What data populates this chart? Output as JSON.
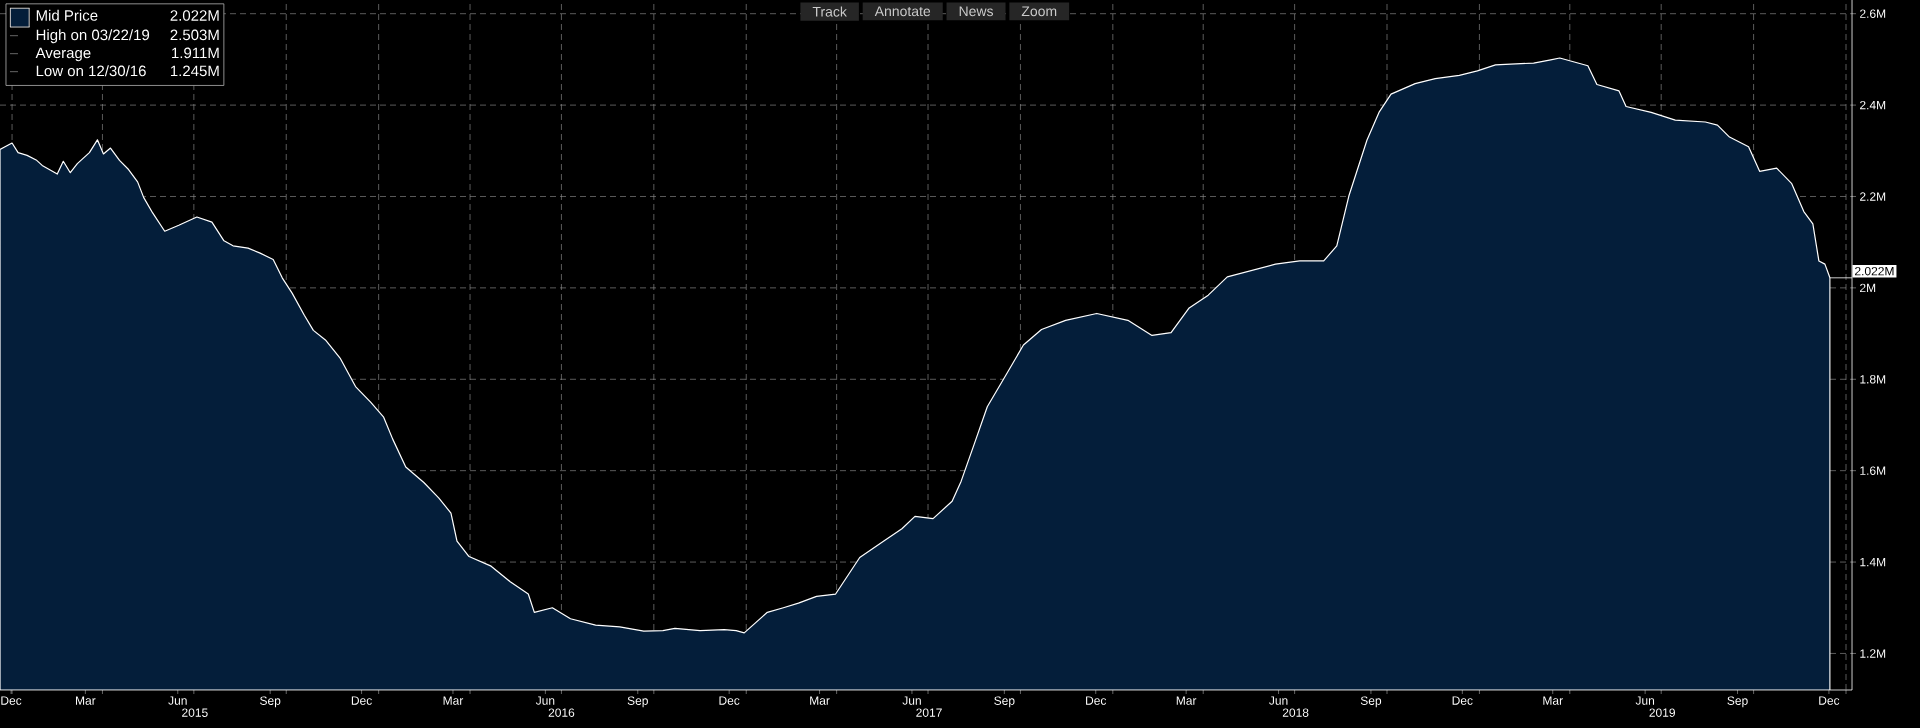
{
  "chart_data": {
    "type": "area",
    "x": [
      "2014-12-20",
      "2015-01-01",
      "2015-01-07",
      "2015-01-16",
      "2015-01-25",
      "2015-01-31",
      "2015-02-15",
      "2015-02-21",
      "2015-02-28",
      "2015-03-07",
      "2015-03-19",
      "2015-03-27",
      "2015-04-02",
      "2015-04-09",
      "2015-04-18",
      "2015-04-27",
      "2015-05-06",
      "2015-05-12",
      "2015-05-21",
      "2015-06-02",
      "2015-06-16",
      "2015-07-04",
      "2015-07-19",
      "2015-07-31",
      "2015-08-09",
      "2015-08-24",
      "2015-09-05",
      "2015-09-18",
      "2015-09-27",
      "2015-10-07",
      "2015-10-19",
      "2015-10-28",
      "2015-11-09",
      "2015-11-24",
      "2015-12-09",
      "2015-12-24",
      "2016-01-06",
      "2016-01-15",
      "2016-01-28",
      "2016-02-15",
      "2016-03-01",
      "2016-03-13",
      "2016-03-19",
      "2016-03-31",
      "2016-04-22",
      "2016-05-11",
      "2016-05-29",
      "2016-06-04",
      "2016-06-22",
      "2016-07-10",
      "2016-08-04",
      "2016-08-28",
      "2016-09-21",
      "2016-10-10",
      "2016-10-22",
      "2016-11-16",
      "2016-12-10",
      "2016-12-22",
      "2016-12-30",
      "2017-01-22",
      "2017-02-07",
      "2017-02-22",
      "2017-03-12",
      "2017-03-31",
      "2017-04-12",
      "2017-04-24",
      "2017-05-18",
      "2017-06-05",
      "2017-06-18",
      "2017-07-06",
      "2017-07-25",
      "2017-08-03",
      "2017-08-16",
      "2017-08-29",
      "2017-09-16",
      "2017-10-04",
      "2017-10-22",
      "2017-11-15",
      "2017-12-16",
      "2018-01-16",
      "2018-02-09",
      "2018-02-28",
      "2018-03-18",
      "2018-04-06",
      "2018-04-25",
      "2018-05-19",
      "2018-06-12",
      "2018-07-06",
      "2018-07-30",
      "2018-08-12",
      "2018-08-24",
      "2018-09-11",
      "2018-09-23",
      "2018-10-05",
      "2018-10-29",
      "2018-11-18",
      "2018-12-12",
      "2018-12-30",
      "2019-01-17",
      "2019-02-24",
      "2019-03-13",
      "2019-03-22",
      "2019-04-19",
      "2019-04-28",
      "2019-05-20",
      "2019-05-27",
      "2019-06-21",
      "2019-07-15",
      "2019-08-14",
      "2019-08-26",
      "2019-09-07",
      "2019-09-26",
      "2019-10-07",
      "2019-10-24",
      "2019-11-08",
      "2019-11-20",
      "2019-11-29",
      "2019-12-05",
      "2019-12-11",
      "2019-12-16"
    ],
    "series": [
      {
        "name": "Mid Price",
        "color": "#041e3a",
        "values": [
          2.303,
          2.317,
          2.296,
          2.29,
          2.28,
          2.268,
          2.249,
          2.277,
          2.252,
          2.272,
          2.296,
          2.324,
          2.293,
          2.306,
          2.279,
          2.259,
          2.232,
          2.198,
          2.164,
          2.124,
          2.137,
          2.155,
          2.144,
          2.103,
          2.092,
          2.087,
          2.076,
          2.062,
          2.022,
          1.988,
          1.94,
          1.907,
          1.886,
          1.845,
          1.784,
          1.75,
          1.717,
          1.669,
          1.608,
          1.574,
          1.54,
          1.507,
          1.446,
          1.412,
          1.391,
          1.357,
          1.33,
          1.29,
          1.3,
          1.276,
          1.262,
          1.258,
          1.249,
          1.25,
          1.255,
          1.25,
          1.252,
          1.25,
          1.245,
          1.29,
          1.3,
          1.31,
          1.325,
          1.33,
          1.37,
          1.41,
          1.446,
          1.473,
          1.5,
          1.495,
          1.533,
          1.577,
          1.658,
          1.74,
          1.807,
          1.875,
          1.909,
          1.929,
          1.944,
          1.929,
          1.896,
          1.902,
          1.956,
          1.984,
          2.024,
          2.038,
          2.052,
          2.059,
          2.059,
          2.092,
          2.201,
          2.323,
          2.384,
          2.424,
          2.447,
          2.458,
          2.465,
          2.475,
          2.488,
          2.492,
          2.499,
          2.503,
          2.486,
          2.445,
          2.431,
          2.397,
          2.384,
          2.367,
          2.363,
          2.356,
          2.33,
          2.309,
          2.255,
          2.262,
          2.228,
          2.167,
          2.14,
          2.059,
          2.052,
          2.022
        ]
      }
    ],
    "xlim": [
      "2014-12-20",
      "2020-01-07"
    ],
    "ylim": [
      1.12,
      2.63
    ],
    "x2lim": [
      "2014-12-20",
      "2020-01-07"
    ],
    "x2ticks": [
      {
        "value": "2015-07-02",
        "label": "2015"
      },
      {
        "value": "2016-07-01",
        "label": "2016"
      },
      {
        "value": "2017-07-02",
        "label": "2017"
      },
      {
        "value": "2018-07-02",
        "label": "2018"
      },
      {
        "value": "2019-07-02",
        "label": "2019"
      }
    ],
    "xticks": [
      {
        "value": "2014-12-31",
        "label": "Dec"
      },
      {
        "value": "2015-03-15",
        "label": "Mar"
      },
      {
        "value": "2015-06-15",
        "label": "Jun"
      },
      {
        "value": "2015-09-15",
        "label": "Sep"
      },
      {
        "value": "2015-12-15",
        "label": "Dec"
      },
      {
        "value": "2016-03-15",
        "label": "Mar"
      },
      {
        "value": "2016-06-15",
        "label": "Jun"
      },
      {
        "value": "2016-09-15",
        "label": "Sep"
      },
      {
        "value": "2016-12-15",
        "label": "Dec"
      },
      {
        "value": "2017-03-15",
        "label": "Mar"
      },
      {
        "value": "2017-06-15",
        "label": "Jun"
      },
      {
        "value": "2017-09-15",
        "label": "Sep"
      },
      {
        "value": "2017-12-15",
        "label": "Dec"
      },
      {
        "value": "2018-03-15",
        "label": "Mar"
      },
      {
        "value": "2018-06-15",
        "label": "Jun"
      },
      {
        "value": "2018-09-15",
        "label": "Sep"
      },
      {
        "value": "2018-12-15",
        "label": "Dec"
      },
      {
        "value": "2019-03-15",
        "label": "Mar"
      },
      {
        "value": "2019-06-15",
        "label": "Jun"
      },
      {
        "value": "2019-09-15",
        "label": "Sep"
      },
      {
        "value": "2019-12-15",
        "label": "Dec"
      },
      {
        "value": "2015-01-01",
        "label": null
      },
      {
        "value": "2015-04-01",
        "label": null
      },
      {
        "value": "2015-07-01",
        "label": null
      },
      {
        "value": "2015-10-01",
        "label": null
      },
      {
        "value": "2016-01-01",
        "label": null
      },
      {
        "value": "2016-04-01",
        "label": null
      },
      {
        "value": "2016-07-01",
        "label": null
      },
      {
        "value": "2016-10-01",
        "label": null
      },
      {
        "value": "2017-01-01",
        "label": null
      },
      {
        "value": "2017-04-01",
        "label": null
      },
      {
        "value": "2017-07-01",
        "label": null
      },
      {
        "value": "2017-10-01",
        "label": null
      },
      {
        "value": "2018-01-01",
        "label": null
      },
      {
        "value": "2018-04-01",
        "label": null
      },
      {
        "value": "2018-07-01",
        "label": null
      },
      {
        "value": "2018-10-01",
        "label": null
      },
      {
        "value": "2019-01-01",
        "label": null
      },
      {
        "value": "2019-04-01",
        "label": null
      },
      {
        "value": "2019-07-01",
        "label": null
      },
      {
        "value": "2019-10-01",
        "label": null
      },
      {
        "value": "2020-01-01",
        "label": null
      }
    ],
    "yticks": [
      {
        "value": 1.2,
        "label": "1.2M"
      },
      {
        "value": 1.4,
        "label": "1.4M"
      },
      {
        "value": 1.6,
        "label": "1.6M"
      },
      {
        "value": 1.8,
        "label": "1.8M"
      },
      {
        "value": 2.0,
        "label": "2M"
      },
      {
        "value": 2.2,
        "label": "2.2M"
      },
      {
        "value": 2.4,
        "label": "2.4M"
      },
      {
        "value": 2.6,
        "label": "2.6M"
      }
    ],
    "grid": true,
    "legend": "top left",
    "annotations": [
      "2.022M",
      "High on 03/22/19",
      "2.503M",
      "Average",
      "1.911M",
      "Low on 12/30/16",
      "1.245M",
      "Track",
      "Annotate",
      "News",
      "Zoom",
      {
        "text": "2.022M",
        "x": "2019-12-16",
        "y": 2.022
      }
    ]
  }
}
